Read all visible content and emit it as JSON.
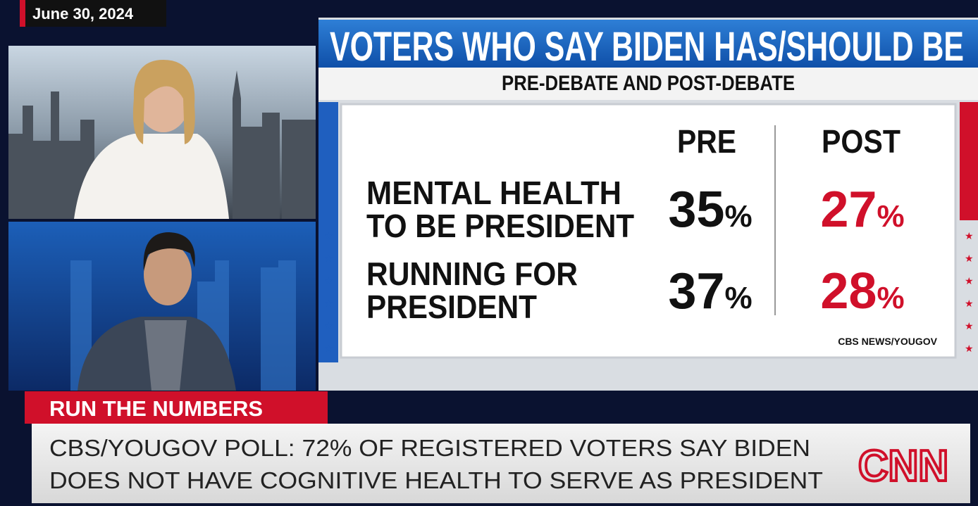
{
  "date": "June 30, 2024",
  "graphic": {
    "title": "VOTERS WHO SAY BIDEN HAS/SHOULD BE",
    "subtitle": "PRE-DEBATE AND POST-DEBATE",
    "table": {
      "columns": [
        "PRE",
        "POST"
      ],
      "rows": [
        {
          "label": [
            "MENTAL HEALTH",
            "TO BE PRESIDENT"
          ],
          "pre": "35%",
          "post": "27%"
        },
        {
          "label": [
            "RUNNING FOR",
            "PRESIDENT"
          ],
          "pre": "37%",
          "post": "28%"
        }
      ]
    },
    "source": "CBS NEWS/YOUGOV"
  },
  "chyron": {
    "tag": "RUN THE NUMBERS",
    "lines": [
      "CBS/YOUGOV POLL: 72% OF REGISTERED VOTERS SAY BIDEN",
      "DOES NOT HAVE COGNITIVE HEALTH TO SERVE AS PRESIDENT"
    ],
    "logo": "CNN"
  }
}
